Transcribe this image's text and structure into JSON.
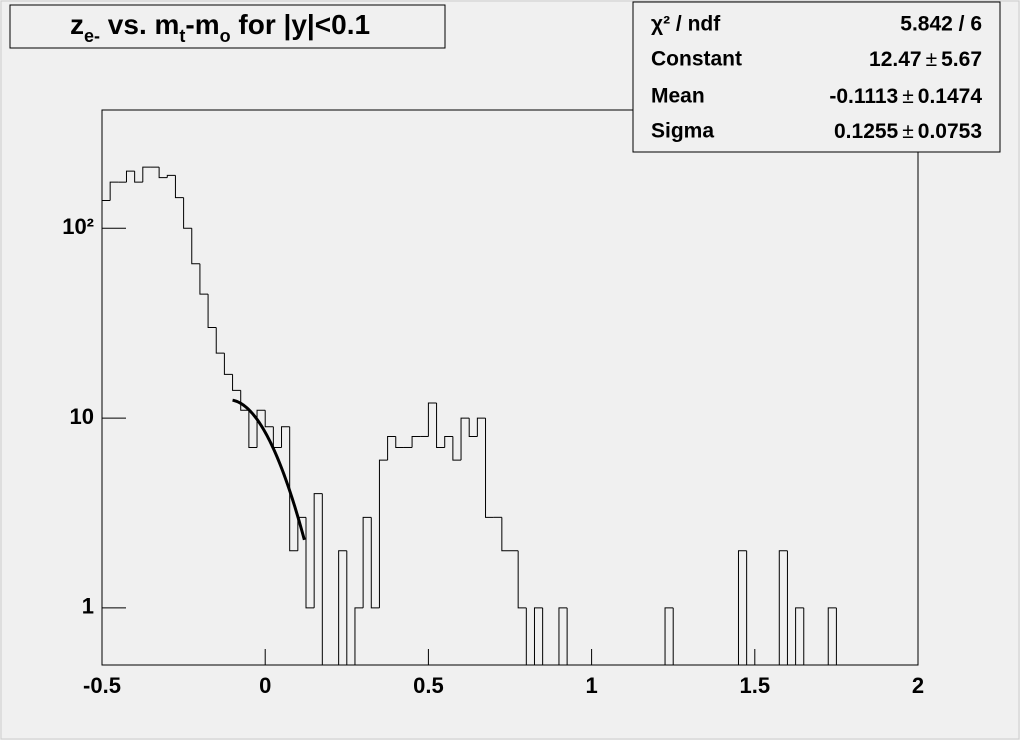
{
  "chart_data": {
    "type": "histogram",
    "title_parts": [
      {
        "text": "z"
      },
      {
        "text": "e-",
        "sub": true
      },
      {
        "text": " vs. m"
      },
      {
        "text": "t",
        "sub": true
      },
      {
        "text": "-m"
      },
      {
        "text": "o",
        "sub": true
      },
      {
        "text": " for |y|<0.1"
      }
    ],
    "bins": [
      -0.5,
      -0.475,
      -0.45,
      -0.425,
      -0.4,
      -0.375,
      -0.35,
      -0.325,
      -0.3,
      -0.275,
      -0.25,
      -0.225,
      -0.2,
      -0.175,
      -0.15,
      -0.125,
      -0.1,
      -0.075,
      -0.05,
      -0.025,
      0,
      0.025,
      0.05,
      0.075,
      0.1,
      0.125,
      0.15,
      0.175,
      0.2,
      0.225,
      0.25,
      0.275,
      0.3,
      0.325,
      0.35,
      0.375,
      0.4,
      0.425,
      0.45,
      0.475,
      0.5,
      0.525,
      0.55,
      0.575,
      0.6,
      0.625,
      0.65,
      0.675,
      0.7,
      0.725,
      0.75,
      0.775,
      0.8,
      0.825,
      0.85,
      0.875,
      0.9,
      0.925,
      0.95,
      0.975,
      1,
      1.025,
      1.05,
      1.075,
      1.1,
      1.125,
      1.15,
      1.175,
      1.2,
      1.225,
      1.25,
      1.275,
      1.3,
      1.325,
      1.35,
      1.375,
      1.4,
      1.425,
      1.45,
      1.475,
      1.5,
      1.525,
      1.55,
      1.575,
      1.6,
      1.625,
      1.65,
      1.675,
      1.7,
      1.725,
      1.75,
      1.775,
      1.8,
      1.825,
      1.85,
      1.875,
      1.9,
      1.925,
      1.95,
      1.975,
      2
    ],
    "values": [
      140,
      175,
      175,
      200,
      175,
      210,
      210,
      185,
      190,
      145,
      100,
      65,
      45,
      30,
      22,
      17,
      14,
      11,
      7,
      11,
      9,
      7,
      9,
      2,
      3,
      1,
      4,
      0,
      0,
      2,
      0,
      1,
      3,
      1,
      6,
      8,
      7,
      7,
      8,
      8,
      12,
      7,
      8,
      6,
      10,
      8,
      10,
      3,
      3,
      2,
      2,
      1,
      0,
      1,
      0,
      0,
      1,
      0,
      0,
      0,
      0,
      0,
      0,
      0,
      0,
      0,
      0,
      0,
      0,
      1,
      0,
      0,
      0,
      0,
      0,
      0,
      0,
      0,
      2,
      0,
      0,
      0,
      0,
      2,
      0,
      1,
      0,
      0,
      0,
      1,
      0,
      0,
      0,
      0,
      0,
      0,
      0,
      0,
      0,
      0
    ],
    "color": "#000000",
    "xlim": [
      -0.5,
      2
    ],
    "xticks": [
      -0.5,
      0,
      0.5,
      1,
      1.5,
      2
    ],
    "ylim": [
      0.5,
      420
    ],
    "yticks": [
      1,
      10,
      {
        "value": 100,
        "label": "10²"
      }
    ],
    "log_y": true,
    "fit": {
      "range": [
        -0.1,
        0.12
      ],
      "color": "#000000"
    },
    "stats": {
      "pm_symbol": "±",
      "chi2": {
        "label": "χ² / ndf",
        "value": "5.842 / 6"
      },
      "params": [
        {
          "label": "Constant",
          "value": 12.47,
          "error": 5.67
        },
        {
          "label": "Mean",
          "value": -0.1113,
          "error": 0.1474
        },
        {
          "label": "Sigma",
          "value": 0.1255,
          "error": 0.0753
        }
      ]
    }
  }
}
